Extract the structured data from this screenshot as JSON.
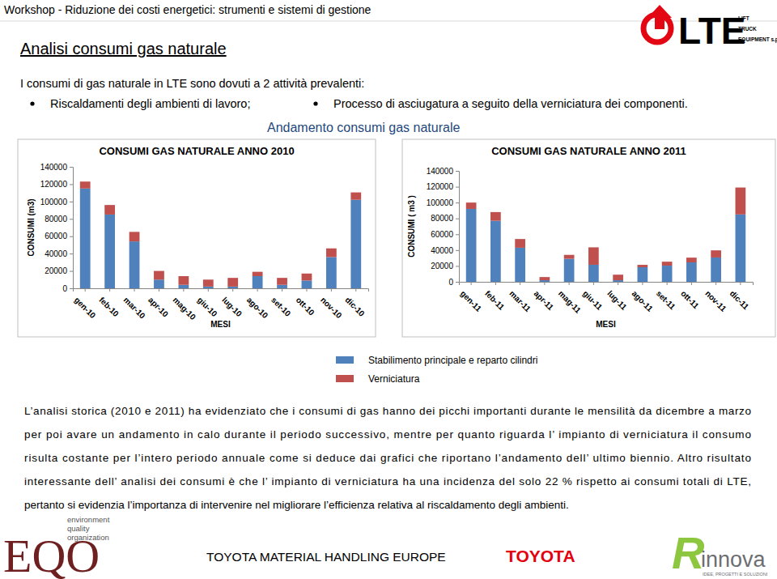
{
  "page": {
    "header": "Workshop - Riduzione dei costi energetici: strumenti e sistemi di gestione",
    "title": "Analisi consumi gas naturale",
    "intro": "I consumi di gas naturale in LTE sono dovuti a 2 attività prevalenti:",
    "bullets": [
      "Riscaldamenti degli ambienti di lavoro;",
      "Processo di asciugatura a seguito della verniciatura dei componenti."
    ],
    "charts_heading": "Andamento consumi gas naturale",
    "paragraph": [
      "L’analisi storica (2010 e 2011) ha evidenziato che i consumi di gas hanno dei picchi importanti durante le mensilità da dicembre a marzo",
      "per poi avare un andamento in calo durante il periodo successivo, mentre per quanto riguarda l’ impianto di verniciatura il consumo",
      "risulta costante per l’intero periodo annuale come si deduce dai grafici che riportano l’andamento dell’ ultimo biennio. Altro risultato",
      "interessante dell’ analisi dei consumi è che l’ impianto di verniciatura ha una incidenza del solo 22 %  rispetto ai consumi totali di LTE,",
      "pertanto si evidenzia l’importanza di intervenire nel migliorare l’efficienza relativa al riscaldamento degli ambienti."
    ],
    "footer": "TOYOTA MATERIAL HANDLING EUROPE",
    "logo_lte": {
      "name": "LTE",
      "lines": [
        "LIFT",
        "TRUCK",
        "EQUIPMENT s.p.a"
      ]
    },
    "logo_eqo": {
      "name": "EQO",
      "lines": [
        "environment",
        "quality",
        "organization"
      ]
    },
    "logo_toyota": "TOYOTA",
    "logo_rinnova": {
      "mark": "R",
      "name": "innova",
      "tagline": "IDEE, PROGETTI E SOLUZIONI"
    }
  },
  "chart_data": [
    {
      "type": "bar",
      "stacked": true,
      "title": "CONSUMI GAS NATURALE ANNO 2010",
      "x_label": "MESI",
      "y_label": "CONSUMI (m3)",
      "categories": [
        "gen-10",
        "feb-10",
        "mar-10",
        "apr-10",
        "mag-10",
        "giu-10",
        "lug-10",
        "ago-10",
        "set-10",
        "ott-10",
        "nov-10",
        "dic-10"
      ],
      "series": [
        {
          "name": "Stabilimento principale e reparto cilindri",
          "color": "#4f81bd",
          "values": [
            115000,
            85000,
            54000,
            10000,
            4000,
            2000,
            2000,
            14000,
            4000,
            9000,
            36000,
            102000
          ]
        },
        {
          "name": "Verniciatura",
          "color": "#c0504d",
          "values": [
            8000,
            11000,
            11000,
            10000,
            10000,
            8000,
            10000,
            5000,
            8000,
            8000,
            10000,
            8500
          ]
        }
      ],
      "ylim": [
        0,
        140000
      ],
      "yticks": [
        0,
        20000,
        40000,
        60000,
        80000,
        100000,
        120000,
        140000
      ],
      "grid": false
    },
    {
      "type": "bar",
      "stacked": true,
      "title": "CONSUMI GAS NATURALE ANNO 2011",
      "x_label": "MESI",
      "y_label": "CONSUMI ( m3 )",
      "categories": [
        "gen-11",
        "feb-11",
        "mar-11",
        "apr-11",
        "mag-11",
        "giu-11",
        "lug-11",
        "ago-11",
        "set-11",
        "ott-11",
        "nov-11",
        "dic-11"
      ],
      "series": [
        {
          "color": "#4f81bd",
          "values": [
            92000,
            77000,
            43000,
            2000,
            29000,
            21500,
            2000,
            18400,
            20400,
            24500,
            30700,
            85000
          ]
        },
        {
          "color": "#c0504d",
          "values": [
            8000,
            11000,
            11000,
            4000,
            5000,
            22000,
            7000,
            3000,
            5000,
            6000,
            9000,
            34000
          ]
        }
      ],
      "ylim": [
        0,
        140000
      ],
      "yticks": [
        0,
        20000,
        40000,
        60000,
        80000,
        100000,
        120000,
        140000
      ],
      "grid": false
    }
  ]
}
